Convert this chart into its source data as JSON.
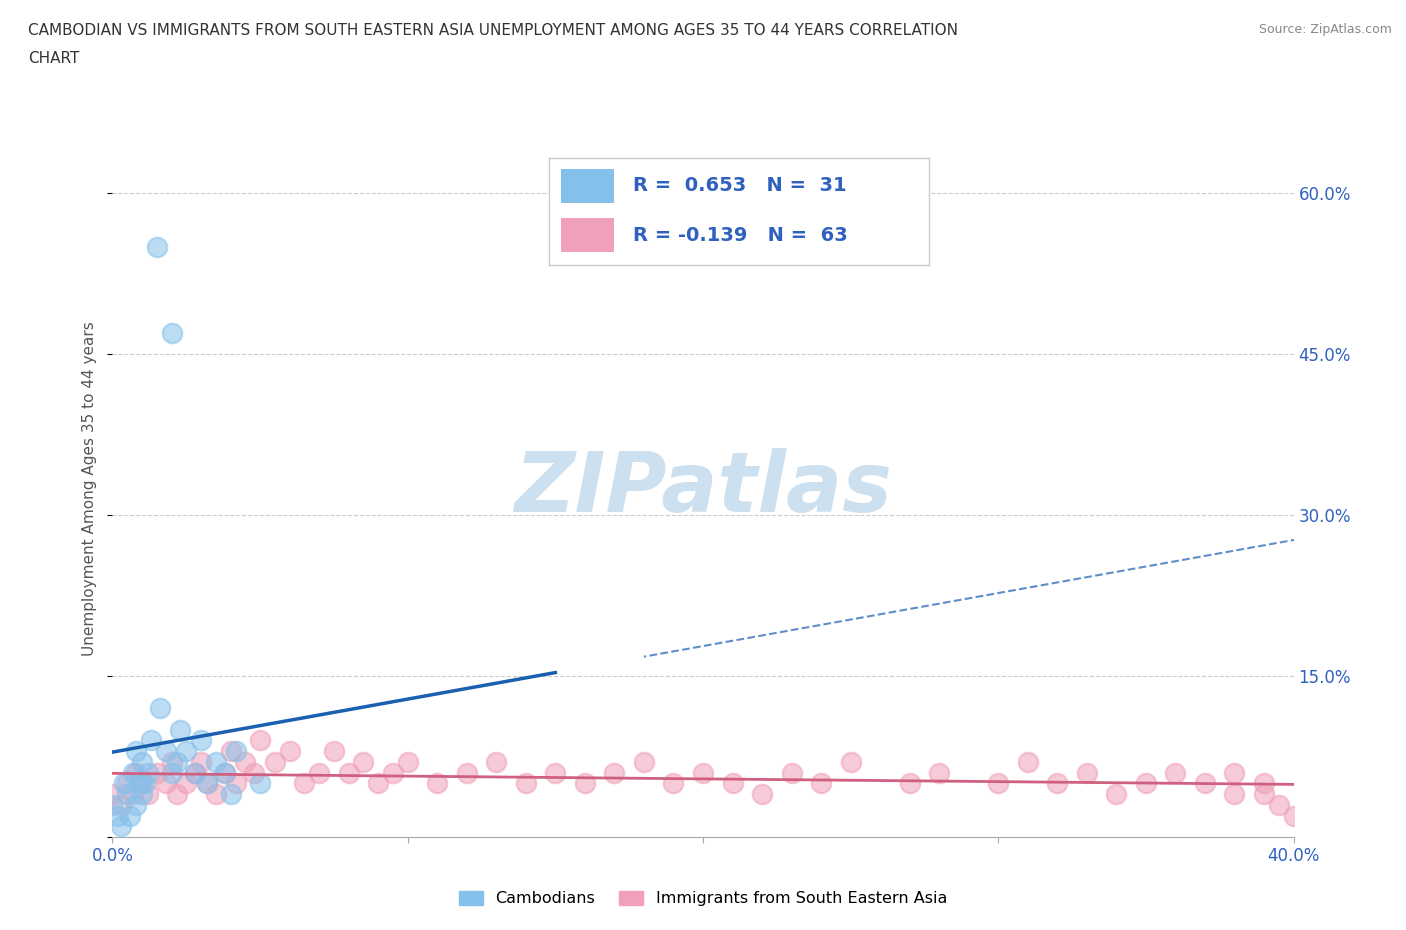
{
  "title_line1": "CAMBODIAN VS IMMIGRANTS FROM SOUTH EASTERN ASIA UNEMPLOYMENT AMONG AGES 35 TO 44 YEARS CORRELATION",
  "title_line2": "CHART",
  "source": "Source: ZipAtlas.com",
  "ylabel": "Unemployment Among Ages 35 to 44 years",
  "xlim": [
    0.0,
    0.4
  ],
  "ylim": [
    0.0,
    0.65
  ],
  "xticks": [
    0.0,
    0.1,
    0.2,
    0.3,
    0.4
  ],
  "yticks": [
    0.0,
    0.15,
    0.3,
    0.45,
    0.6
  ],
  "background_color": "#ffffff",
  "watermark_zip": "ZIP",
  "watermark_atlas": "atlas",
  "watermark_color_zip": "#b8d8f0",
  "watermark_color_atlas": "#c8a8d8",
  "legend_R1": "R =  0.653",
  "legend_N1": "N =  31",
  "legend_R2": "R = -0.139",
  "legend_N2": "N =  63",
  "legend_label1": "Cambodians",
  "legend_label2": "Immigrants from South Eastern Asia",
  "color_cambodian": "#85c0ea",
  "color_sea": "#f0a0b8",
  "color_blue_line": "#1a5fb0",
  "color_pink_line": "#d06080",
  "color_tick_blue": "#3060c0",
  "cambodian_x": [
    0.0,
    0.002,
    0.003,
    0.004,
    0.005,
    0.006,
    0.007,
    0.008,
    0.008,
    0.009,
    0.01,
    0.01,
    0.011,
    0.012,
    0.013,
    0.015,
    0.016,
    0.018,
    0.02,
    0.02,
    0.022,
    0.023,
    0.025,
    0.028,
    0.03,
    0.032,
    0.035,
    0.038,
    0.04,
    0.042,
    0.05
  ],
  "cambodian_y": [
    0.03,
    0.02,
    0.01,
    0.05,
    0.04,
    0.02,
    0.06,
    0.03,
    0.08,
    0.05,
    0.04,
    0.07,
    0.05,
    0.06,
    0.09,
    0.55,
    0.12,
    0.08,
    0.47,
    0.06,
    0.07,
    0.1,
    0.08,
    0.06,
    0.09,
    0.05,
    0.07,
    0.06,
    0.04,
    0.08,
    0.05
  ],
  "sea_x": [
    0.0,
    0.003,
    0.005,
    0.007,
    0.008,
    0.01,
    0.012,
    0.015,
    0.018,
    0.02,
    0.022,
    0.025,
    0.028,
    0.03,
    0.032,
    0.035,
    0.038,
    0.04,
    0.042,
    0.045,
    0.048,
    0.05,
    0.055,
    0.06,
    0.065,
    0.07,
    0.075,
    0.08,
    0.085,
    0.09,
    0.095,
    0.1,
    0.11,
    0.12,
    0.13,
    0.14,
    0.15,
    0.16,
    0.17,
    0.18,
    0.19,
    0.2,
    0.21,
    0.22,
    0.23,
    0.24,
    0.25,
    0.27,
    0.28,
    0.3,
    0.31,
    0.32,
    0.33,
    0.34,
    0.35,
    0.36,
    0.37,
    0.38,
    0.38,
    0.39,
    0.39,
    0.395,
    0.4
  ],
  "sea_y": [
    0.04,
    0.03,
    0.05,
    0.04,
    0.06,
    0.05,
    0.04,
    0.06,
    0.05,
    0.07,
    0.04,
    0.05,
    0.06,
    0.07,
    0.05,
    0.04,
    0.06,
    0.08,
    0.05,
    0.07,
    0.06,
    0.09,
    0.07,
    0.08,
    0.05,
    0.06,
    0.08,
    0.06,
    0.07,
    0.05,
    0.06,
    0.07,
    0.05,
    0.06,
    0.07,
    0.05,
    0.06,
    0.05,
    0.06,
    0.07,
    0.05,
    0.06,
    0.05,
    0.04,
    0.06,
    0.05,
    0.07,
    0.05,
    0.06,
    0.05,
    0.07,
    0.05,
    0.06,
    0.04,
    0.05,
    0.06,
    0.05,
    0.04,
    0.06,
    0.05,
    0.04,
    0.03,
    0.02
  ]
}
